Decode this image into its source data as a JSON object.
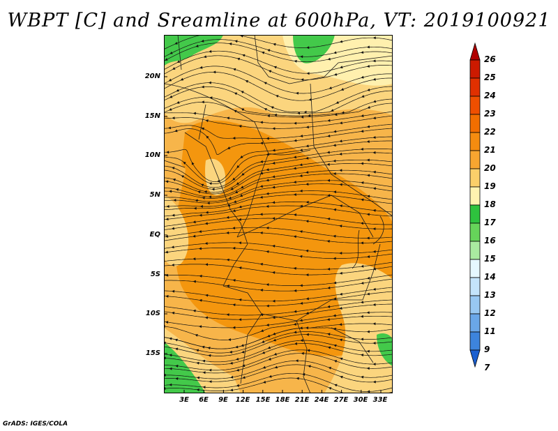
{
  "title": "WBPT [C] and Sreamline at 600hPa, VT: 2019100921",
  "footer": "GrADS: IGES/COLA",
  "map": {
    "lon_range": [
      0,
      35
    ],
    "lat_range": [
      -22,
      24
    ],
    "lat_ticks": [
      "20N",
      "15N",
      "10N",
      "5N",
      "EQ",
      "5S",
      "10S",
      "15S"
    ],
    "lon_ticks": [
      "3E",
      "6E",
      "9E",
      "12E",
      "15E",
      "18E",
      "21E",
      "24E",
      "27E",
      "30E",
      "33E"
    ]
  },
  "colorbar": {
    "labels": [
      "26",
      "25",
      "24",
      "23",
      "22",
      "21",
      "20",
      "19",
      "18",
      "17",
      "16",
      "15",
      "14",
      "13",
      "12",
      "11",
      "9",
      "7"
    ],
    "colors": [
      "#b00000",
      "#cc1a00",
      "#e03000",
      "#ef4f00",
      "#f26e00",
      "#f48c10",
      "#f7a530",
      "#facf6a",
      "#fff3b0",
      "#2ec23e",
      "#66d45a",
      "#a9eaa0",
      "#e6f8ff",
      "#c4e4fb",
      "#98c8f2",
      "#6aa7e8",
      "#3d84dc",
      "#1a5fd0"
    ]
  }
}
